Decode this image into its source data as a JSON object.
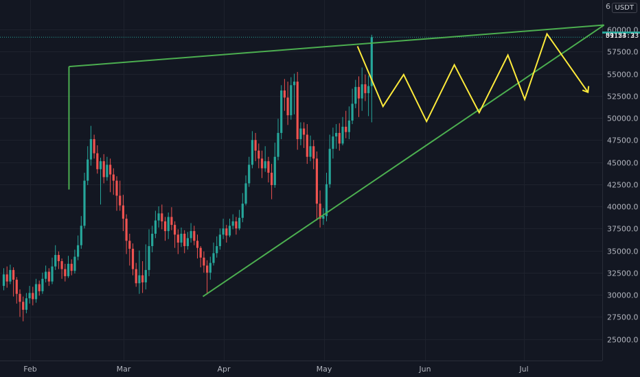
{
  "chart_data": {
    "type": "candlestick",
    "symbol_currency": "USDT",
    "x_ticks": [
      "Feb",
      "Mar",
      "Apr",
      "May",
      "Jun",
      "Jul"
    ],
    "y_ticks": [
      "25000.0",
      "27500.0",
      "30000.0",
      "32500.0",
      "35000.0",
      "37500.0",
      "40000.0",
      "42500.0",
      "45000.0",
      "47500.0",
      "50000.0",
      "52500.0",
      "55000.0",
      "57500.0",
      "60000.0"
    ],
    "top_clipped_label": "6",
    "y_range": [
      23000,
      62600
    ],
    "current_price": "59124.3",
    "countdown": "01:53:23",
    "colors": {
      "background": "#131722",
      "up": "#26a69a",
      "down": "#ef5350",
      "trendline": "#4caf50",
      "projection": "#ffeb3b",
      "text": "#b2b5be",
      "grid": "#1e222d"
    },
    "grid": true,
    "candles": [
      [
        31000,
        32300,
        30500,
        33000
      ],
      [
        32300,
        31500,
        30800,
        33200
      ],
      [
        31500,
        32800,
        31200,
        33400
      ],
      [
        32800,
        31700,
        29800,
        33100
      ],
      [
        31700,
        30100,
        29000,
        32000
      ],
      [
        30100,
        29200,
        27500,
        30600
      ],
      [
        29200,
        28300,
        27000,
        29800
      ],
      [
        28300,
        29600,
        27900,
        30200
      ],
      [
        29600,
        30200,
        29000,
        31000
      ],
      [
        30200,
        29500,
        28800,
        30900
      ],
      [
        29500,
        31200,
        29100,
        31800
      ],
      [
        31200,
        30400,
        29900,
        31600
      ],
      [
        30400,
        31800,
        30100,
        32500
      ],
      [
        31800,
        32600,
        31400,
        33300
      ],
      [
        32600,
        31500,
        31000,
        33000
      ],
      [
        31500,
        33200,
        31200,
        34200
      ],
      [
        33200,
        34500,
        32800,
        35600
      ],
      [
        34500,
        33800,
        32900,
        34900
      ],
      [
        33800,
        32900,
        31800,
        34100
      ],
      [
        32900,
        32100,
        31500,
        33500
      ],
      [
        32100,
        33500,
        31900,
        34400
      ],
      [
        33500,
        32700,
        32200,
        34000
      ],
      [
        32700,
        34300,
        32400,
        35100
      ],
      [
        34300,
        35600,
        33900,
        36700
      ],
      [
        35600,
        37800,
        35200,
        38900
      ],
      [
        37800,
        42900,
        37500,
        43800
      ],
      [
        42900,
        45300,
        42400,
        46800
      ],
      [
        45300,
        47600,
        44600,
        49100
      ],
      [
        47600,
        46000,
        45400,
        48100
      ],
      [
        46000,
        44200,
        43700,
        46900
      ],
      [
        44200,
        45100,
        40200,
        45500
      ],
      [
        45100,
        43300,
        42600,
        45900
      ],
      [
        43300,
        44700,
        42900,
        45600
      ],
      [
        44700,
        43600,
        41600,
        45400
      ],
      [
        43600,
        42900,
        41300,
        44300
      ],
      [
        42900,
        41200,
        39500,
        43400
      ],
      [
        41200,
        40100,
        39500,
        42900
      ],
      [
        40100,
        38600,
        37200,
        41300
      ],
      [
        38600,
        36100,
        34600,
        39100
      ],
      [
        36100,
        35200,
        33300,
        36900
      ],
      [
        35200,
        32900,
        32200,
        35800
      ],
      [
        32900,
        31300,
        30900,
        33600
      ],
      [
        31300,
        32200,
        30100,
        35000
      ],
      [
        32200,
        31400,
        30200,
        33800
      ],
      [
        31400,
        32800,
        30600,
        35700
      ],
      [
        32800,
        35500,
        32100,
        37400
      ],
      [
        35500,
        36900,
        34800,
        37800
      ],
      [
        36900,
        38400,
        36400,
        39500
      ],
      [
        38400,
        39200,
        37600,
        40000
      ],
      [
        39200,
        38300,
        37400,
        40200
      ],
      [
        38300,
        37200,
        36100,
        38800
      ],
      [
        37200,
        38800,
        36300,
        39300
      ],
      [
        38800,
        37900,
        37300,
        39900
      ],
      [
        37900,
        36800,
        35300,
        38300
      ],
      [
        36800,
        35900,
        34600,
        37400
      ],
      [
        35900,
        36900,
        35400,
        37600
      ],
      [
        36900,
        35500,
        34700,
        37300
      ],
      [
        35500,
        36400,
        35100,
        37100
      ],
      [
        36400,
        37200,
        35900,
        38100
      ],
      [
        37200,
        36100,
        35600,
        37800
      ],
      [
        36100,
        35300,
        34100,
        36800
      ],
      [
        35300,
        34200,
        33100,
        35500
      ],
      [
        34200,
        33300,
        32500,
        34900
      ],
      [
        33300,
        32500,
        30100,
        33900
      ],
      [
        32500,
        33600,
        31700,
        34300
      ],
      [
        33600,
        34700,
        33300,
        35900
      ],
      [
        34700,
        35500,
        34200,
        36600
      ],
      [
        35500,
        36800,
        35100,
        37500
      ],
      [
        36800,
        37500,
        36300,
        38600
      ],
      [
        37500,
        36700,
        35900,
        37900
      ],
      [
        36700,
        37800,
        36500,
        38600
      ],
      [
        37800,
        38300,
        37400,
        39100
      ],
      [
        38300,
        37500,
        36800,
        38800
      ],
      [
        37500,
        38700,
        37300,
        39600
      ],
      [
        38700,
        40300,
        38200,
        41500
      ],
      [
        40300,
        42600,
        40100,
        43500
      ],
      [
        42600,
        44700,
        42200,
        45600
      ],
      [
        44700,
        47500,
        44300,
        48500
      ],
      [
        47500,
        46300,
        45100,
        48300
      ],
      [
        46300,
        45400,
        44300,
        47100
      ],
      [
        45400,
        44300,
        43200,
        46300
      ],
      [
        44300,
        45100,
        43900,
        46800
      ],
      [
        45100,
        43800,
        42700,
        45600
      ],
      [
        43800,
        42400,
        40800,
        44800
      ],
      [
        42400,
        45600,
        42100,
        47200
      ],
      [
        45600,
        48300,
        45200,
        49900
      ],
      [
        48300,
        53100,
        47600,
        53700
      ],
      [
        53100,
        52300,
        50800,
        54400
      ],
      [
        52300,
        50300,
        49200,
        54100
      ],
      [
        50300,
        53700,
        49800,
        54600
      ],
      [
        53700,
        54100,
        50400,
        55000
      ],
      [
        54100,
        47600,
        46400,
        55200
      ],
      [
        47600,
        48800,
        46900,
        49500
      ],
      [
        48800,
        48100,
        46600,
        49500
      ],
      [
        48100,
        45600,
        44800,
        49300
      ],
      [
        45600,
        46800,
        45100,
        48000
      ],
      [
        46800,
        45400,
        44200,
        47500
      ],
      [
        45400,
        40300,
        38400,
        46200
      ],
      [
        40300,
        38600,
        37600,
        41800
      ],
      [
        38600,
        38900,
        37900,
        39800
      ],
      [
        38900,
        42500,
        38300,
        43800
      ],
      [
        42500,
        46500,
        42100,
        48100
      ],
      [
        46500,
        47900,
        45400,
        48900
      ],
      [
        47900,
        48300,
        46500,
        49300
      ],
      [
        48300,
        47100,
        46300,
        49400
      ],
      [
        47100,
        49000,
        46900,
        50100
      ],
      [
        49000,
        48400,
        47700,
        50800
      ],
      [
        48400,
        49700,
        47600,
        51300
      ],
      [
        49700,
        51600,
        49300,
        53300
      ],
      [
        51600,
        53500,
        51100,
        54300
      ],
      [
        53500,
        52200,
        50100,
        54700
      ],
      [
        52200,
        53800,
        50800,
        55700
      ],
      [
        53800,
        52800,
        51900,
        54900
      ],
      [
        52800,
        53600,
        50200,
        54800
      ],
      [
        53600,
        59124,
        49500,
        59400
      ]
    ]
  }
}
